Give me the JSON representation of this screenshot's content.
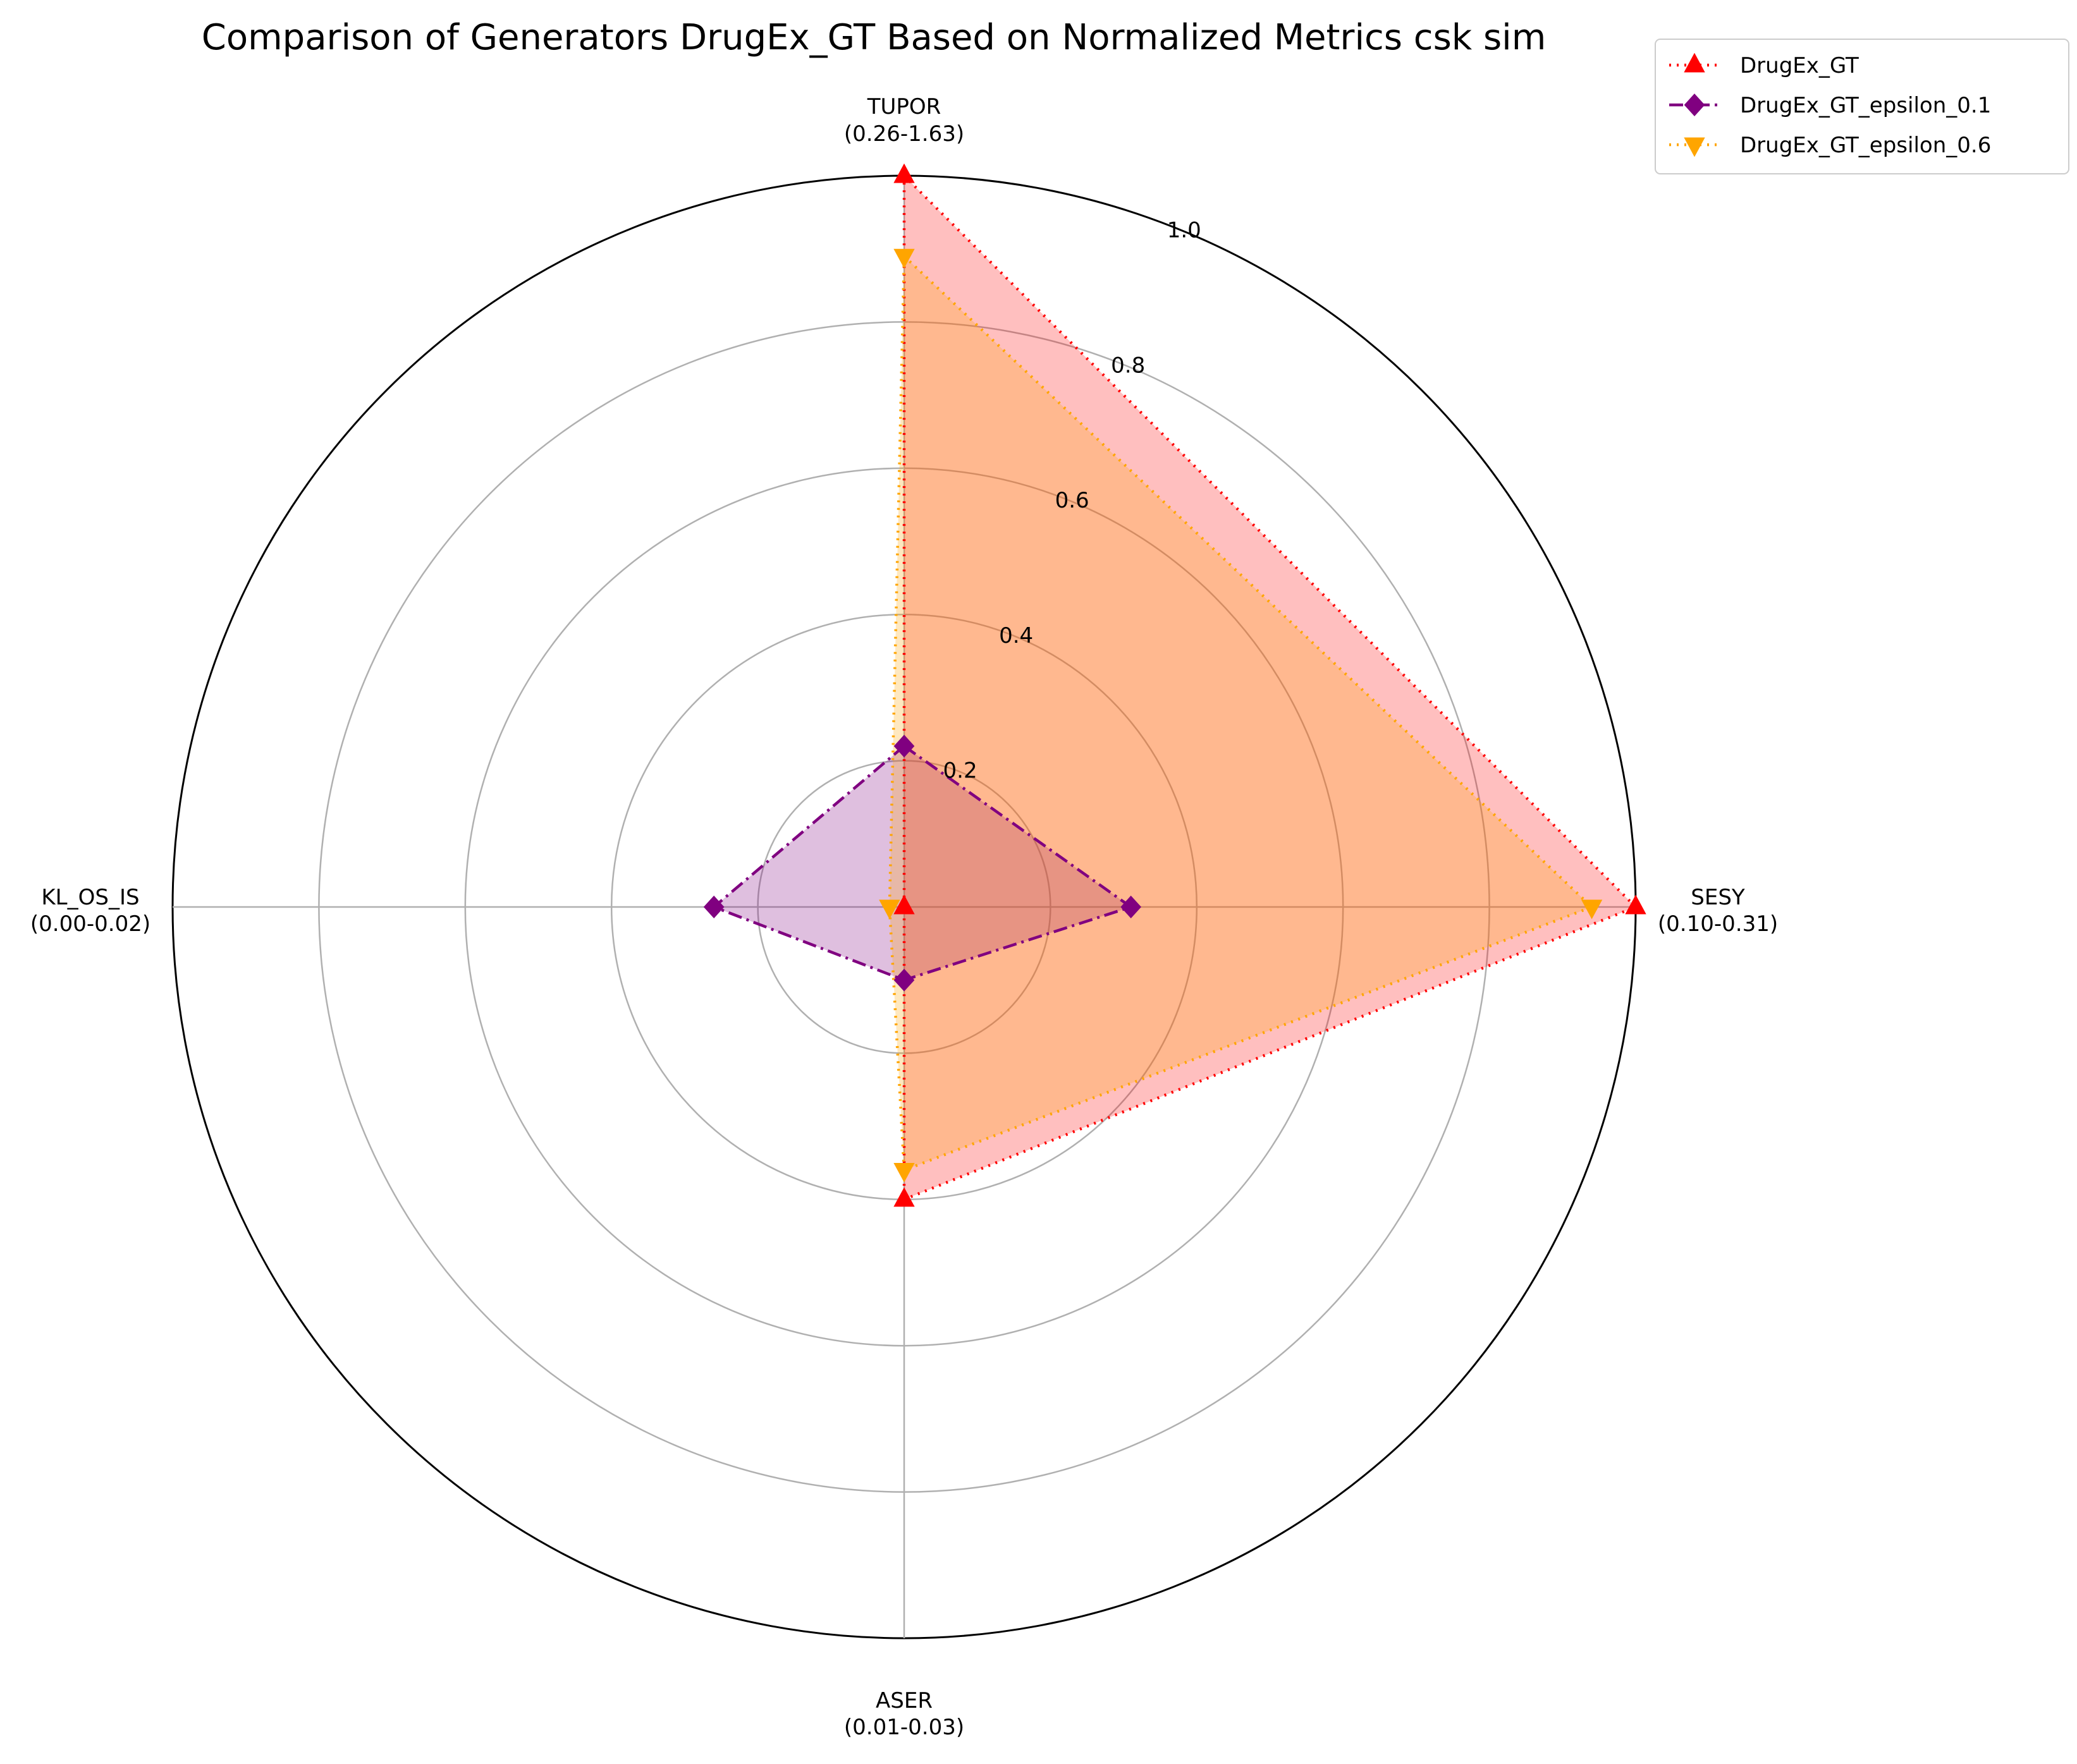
{
  "chart_data": {
    "type": "radar",
    "title": "Comparison of Generators DrugEx_GT Based on Normalized Metrics csk sim",
    "axes": [
      {
        "name": "TUPOR",
        "range": "(0.26-1.63)"
      },
      {
        "name": "SESY",
        "range": "(0.10-0.31)"
      },
      {
        "name": "ASER",
        "range": "(0.01-0.03)"
      },
      {
        "name": "KL_OS_IS",
        "range": "(0.00-0.02)"
      }
    ],
    "rmax": 1.0,
    "rticks": [
      0.2,
      0.4,
      0.6,
      0.8,
      1.0
    ],
    "rtick_labels": [
      "0.2",
      "0.4",
      "0.6",
      "0.8",
      "1.0"
    ],
    "grid": true,
    "legend_position": "upper-right",
    "series": [
      {
        "name": "DrugEx_GT",
        "values": [
          1.0,
          1.0,
          0.4,
          0.0
        ],
        "color": "#ff0000",
        "fill": "#ff0000",
        "marker": "triangle-up",
        "dash": "dotted"
      },
      {
        "name": "DrugEx_GT_epsilon_0.1",
        "values": [
          0.22,
          0.31,
          0.1,
          0.26
        ],
        "color": "#800080",
        "fill": "#800080",
        "marker": "diamond",
        "dash": "dashdot"
      },
      {
        "name": "DrugEx_GT_epsilon_0.6",
        "values": [
          0.89,
          0.94,
          0.36,
          0.02
        ],
        "color": "#ffa500",
        "fill": "#ffa500",
        "marker": "triangle-down",
        "dash": "dotted"
      }
    ]
  }
}
